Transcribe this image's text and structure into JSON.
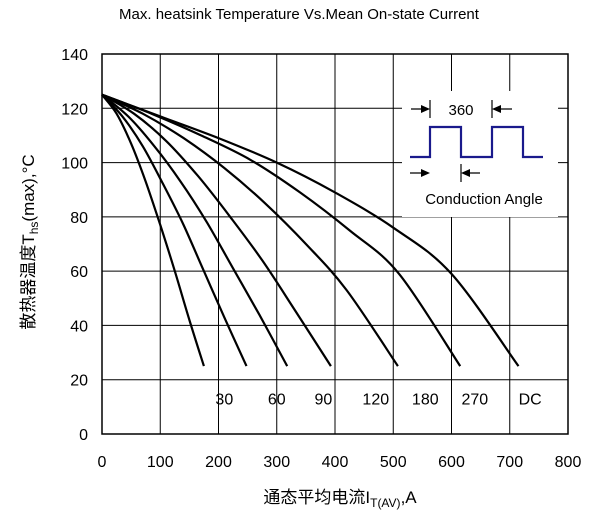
{
  "chart_data": {
    "type": "line",
    "title": "Max. heatsink Temperature Vs.Mean On-state Current",
    "xlabel": "通态平均电流I_T(AV),A",
    "ylabel": "散热器温度T_hs(max),°C",
    "xlabel_parts": {
      "main": "通态平均电流I",
      "sub": "T(AV)",
      "tail": ",A"
    },
    "ylabel_parts": {
      "main": "散热器温度T",
      "sub": "hs",
      "tail": "(max),°C"
    },
    "xlim": [
      0,
      800
    ],
    "ylim": [
      0,
      140
    ],
    "x_ticks": [
      "0",
      "100",
      "200",
      "300",
      "400",
      "500",
      "600",
      "700",
      "800"
    ],
    "y_ticks": [
      "0",
      "20",
      "40",
      "60",
      "80",
      "100",
      "120",
      "140"
    ],
    "grid": true,
    "series": [
      {
        "name": "30",
        "x": [
          0,
          25,
          50,
          75,
          100,
          125,
          150,
          175
        ],
        "y": [
          125,
          118,
          107,
          93,
          77,
          60,
          42,
          25
        ]
      },
      {
        "name": "60",
        "x": [
          0,
          35,
          70,
          105,
          140,
          175,
          210,
          248
        ],
        "y": [
          125,
          117,
          106,
          92,
          77,
          60,
          43,
          25
        ]
      },
      {
        "name": "90",
        "x": [
          0,
          45,
          90,
          135,
          180,
          225,
          270,
          318
        ],
        "y": [
          125,
          117,
          106,
          93,
          78,
          61,
          44,
          25
        ]
      },
      {
        "name": "120",
        "x": [
          0,
          55,
          110,
          165,
          220,
          275,
          330,
          393
        ],
        "y": [
          125,
          118,
          108,
          95,
          80,
          64,
          46,
          25
        ]
      },
      {
        "name": "180",
        "x": [
          0,
          70,
          140,
          210,
          280,
          350,
          420,
          508
        ],
        "y": [
          125,
          118,
          109,
          98,
          85,
          70,
          53,
          25
        ]
      },
      {
        "name": "270",
        "x": [
          0,
          85,
          170,
          255,
          340,
          425,
          510,
          615
        ],
        "y": [
          125,
          118,
          110,
          101,
          89,
          75,
          59,
          25
        ]
      },
      {
        "name": "DC",
        "x": [
          0,
          100,
          200,
          300,
          400,
          500,
          600,
          715
        ],
        "y": [
          125,
          117,
          109,
          100,
          89,
          76,
          59,
          25
        ]
      }
    ],
    "curve_labels": [
      {
        "text": "30",
        "x": 210,
        "y": 13
      },
      {
        "text": "60",
        "x": 300,
        "y": 13
      },
      {
        "text": "90",
        "x": 380,
        "y": 13
      },
      {
        "text": "120",
        "x": 470,
        "y": 13
      },
      {
        "text": "180",
        "x": 555,
        "y": 13
      },
      {
        "text": "270",
        "x": 640,
        "y": 13
      },
      {
        "text": "DC",
        "x": 735,
        "y": 13
      }
    ],
    "inset": {
      "period_label": "360",
      "caption": "Conduction Angle"
    }
  }
}
